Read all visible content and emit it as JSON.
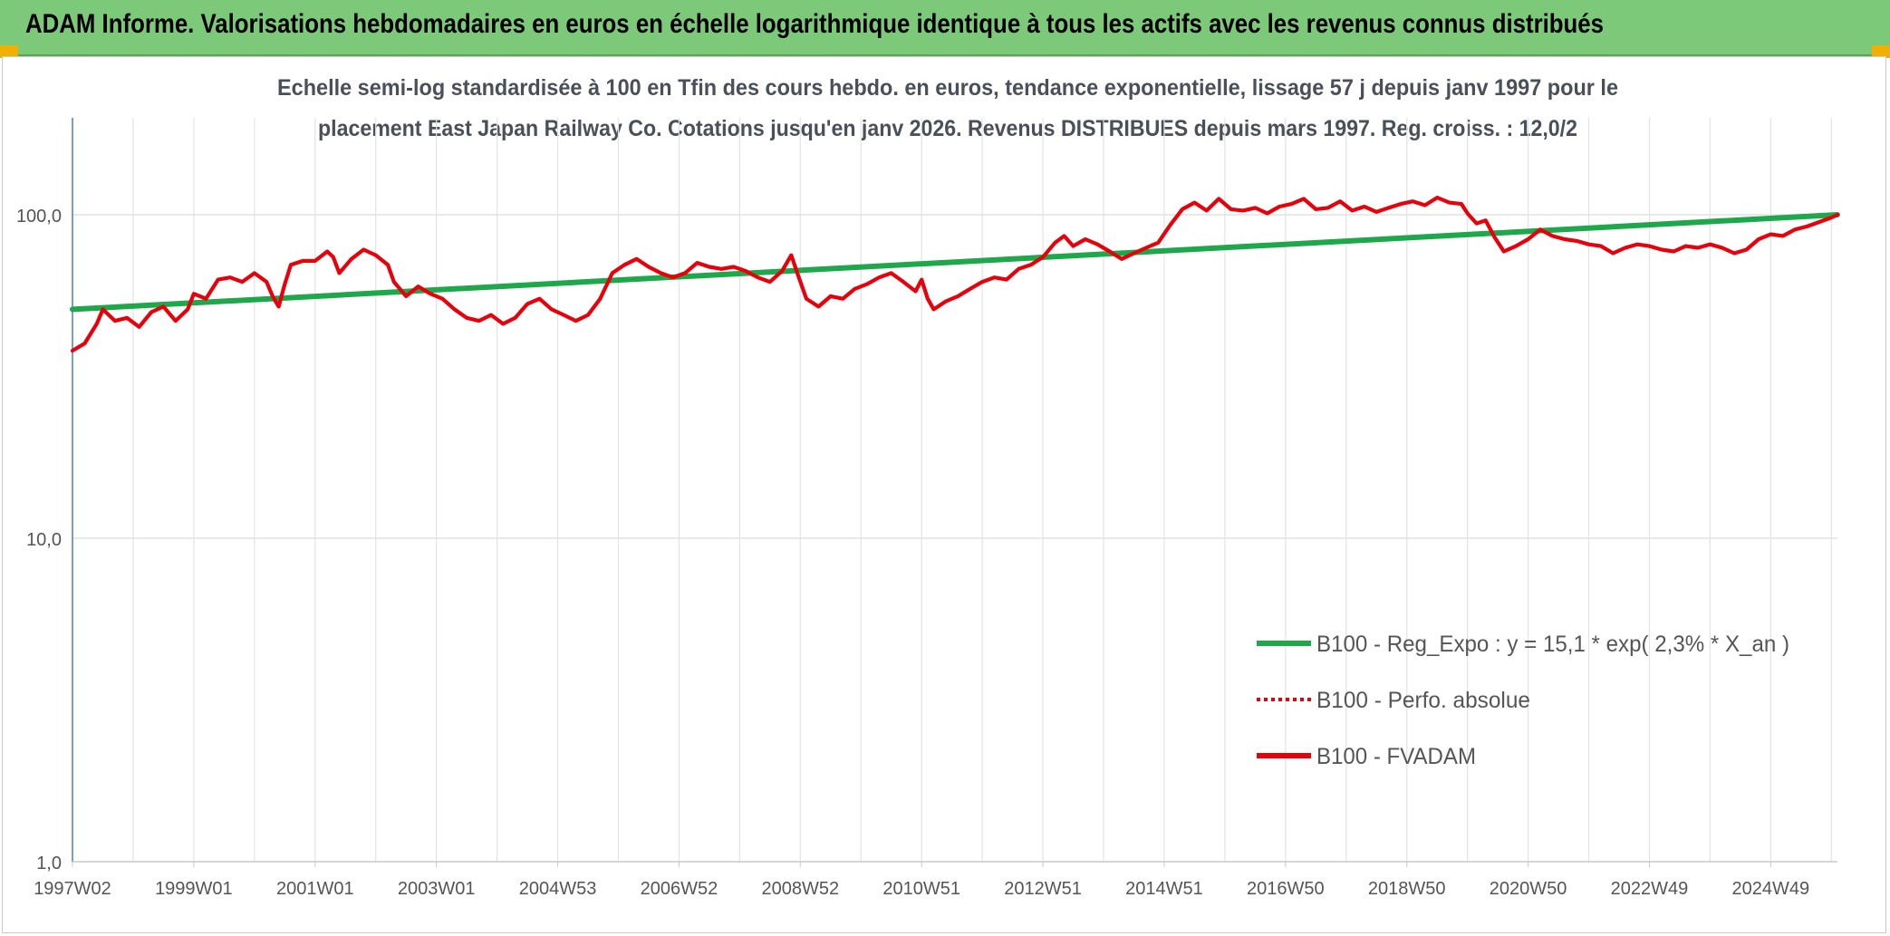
{
  "banner": {
    "title": "ADAM Informe. Valorisations hebdomadaires en euros en échelle logarithmique identique à tous les actifs avec les revenus connus distribués"
  },
  "colors": {
    "banner_bg": "#7dc97a",
    "corner_accent": "#f0b000",
    "regression_line": "#1ea84b",
    "fvadam_line": "#e8000b",
    "axis_line": "#4a7ebb",
    "grid": "#dcdcdc",
    "title_text": "#4a4f5a"
  },
  "chart_data": {
    "type": "line",
    "title_lines": [
      "Echelle semi-log standardisée à 100 en Tfin des cours hebdo. en euros, tendance exponentielle, lissage 57 j depuis janv 1997 pour le",
      "placement East Japan Railway Co. Cotations jusqu'en janv 2026. Revenus DISTRIBUES depuis mars 1997. Reg. croiss. : 12,0/2"
    ],
    "y_scale": "log",
    "ylim": [
      1,
      200
    ],
    "y_ticks": [
      {
        "value": 1,
        "label": "1,0"
      },
      {
        "value": 10,
        "label": "10,0"
      },
      {
        "value": 100,
        "label": "100,0"
      }
    ],
    "xlim": [
      1997.0,
      2026.1
    ],
    "x_ticks": [
      {
        "label": "1997W02",
        "year": 1997.0
      },
      {
        "label": "1999W01",
        "year": 1999.0
      },
      {
        "label": "2001W01",
        "year": 2001.0
      },
      {
        "label": "2003W01",
        "year": 2003.0
      },
      {
        "label": "2004W53",
        "year": 2005.0
      },
      {
        "label": "2006W52",
        "year": 2007.0
      },
      {
        "label": "2008W52",
        "year": 2009.0
      },
      {
        "label": "2010W51",
        "year": 2011.0
      },
      {
        "label": "2012W51",
        "year": 2013.0
      },
      {
        "label": "2014W51",
        "year": 2015.0
      },
      {
        "label": "2016W50",
        "year": 2017.0
      },
      {
        "label": "2018W50",
        "year": 2019.0
      },
      {
        "label": "2020W50",
        "year": 2021.0
      },
      {
        "label": "2022W49",
        "year": 2023.0
      },
      {
        "label": "2024W49",
        "year": 2025.0
      }
    ],
    "legend_position": "right-middle",
    "series": [
      {
        "name": "B100 - Reg_Expo : y = 15,1 * exp( 2,3% *  X_an )",
        "style": "solid-thick",
        "color": "#1ea84b",
        "points": [
          [
            1997.0,
            51
          ],
          [
            2026.1,
            100
          ]
        ]
      },
      {
        "name": "B100 - Perfo. absolue",
        "style": "dotted",
        "color": "#e8000b",
        "points": []
      },
      {
        "name": "B100 - FVADAM",
        "style": "solid",
        "color": "#e8000b",
        "points": [
          [
            1997.0,
            38
          ],
          [
            1997.2,
            40
          ],
          [
            1997.4,
            46
          ],
          [
            1997.5,
            51
          ],
          [
            1997.7,
            47
          ],
          [
            1997.9,
            48
          ],
          [
            1998.1,
            45
          ],
          [
            1998.3,
            50
          ],
          [
            1998.5,
            52
          ],
          [
            1998.7,
            47
          ],
          [
            1998.9,
            51
          ],
          [
            1999.0,
            57
          ],
          [
            1999.2,
            55
          ],
          [
            1999.4,
            63
          ],
          [
            1999.6,
            64
          ],
          [
            1999.8,
            62
          ],
          [
            2000.0,
            66
          ],
          [
            2000.2,
            62
          ],
          [
            2000.3,
            56
          ],
          [
            2000.4,
            52
          ],
          [
            2000.5,
            61
          ],
          [
            2000.6,
            70
          ],
          [
            2000.8,
            72
          ],
          [
            2001.0,
            72
          ],
          [
            2001.2,
            77
          ],
          [
            2001.3,
            74
          ],
          [
            2001.4,
            66
          ],
          [
            2001.6,
            73
          ],
          [
            2001.8,
            78
          ],
          [
            2002.0,
            75
          ],
          [
            2002.2,
            70
          ],
          [
            2002.3,
            62
          ],
          [
            2002.5,
            56
          ],
          [
            2002.7,
            60
          ],
          [
            2002.9,
            57
          ],
          [
            2003.1,
            55
          ],
          [
            2003.3,
            51
          ],
          [
            2003.5,
            48
          ],
          [
            2003.7,
            47
          ],
          [
            2003.9,
            49
          ],
          [
            2004.1,
            46
          ],
          [
            2004.3,
            48
          ],
          [
            2004.5,
            53
          ],
          [
            2004.7,
            55
          ],
          [
            2004.9,
            51
          ],
          [
            2005.1,
            49
          ],
          [
            2005.3,
            47
          ],
          [
            2005.5,
            49
          ],
          [
            2005.7,
            55
          ],
          [
            2005.9,
            66
          ],
          [
            2006.1,
            70
          ],
          [
            2006.3,
            73
          ],
          [
            2006.5,
            69
          ],
          [
            2006.7,
            66
          ],
          [
            2006.9,
            64
          ],
          [
            2007.1,
            66
          ],
          [
            2007.3,
            71
          ],
          [
            2007.5,
            69
          ],
          [
            2007.7,
            68
          ],
          [
            2007.9,
            69
          ],
          [
            2008.1,
            67
          ],
          [
            2008.3,
            64
          ],
          [
            2008.5,
            62
          ],
          [
            2008.7,
            67
          ],
          [
            2008.85,
            75
          ],
          [
            2008.95,
            66
          ],
          [
            2009.1,
            55
          ],
          [
            2009.3,
            52
          ],
          [
            2009.5,
            56
          ],
          [
            2009.7,
            55
          ],
          [
            2009.9,
            59
          ],
          [
            2010.1,
            61
          ],
          [
            2010.3,
            64
          ],
          [
            2010.5,
            66
          ],
          [
            2010.7,
            62
          ],
          [
            2010.9,
            58
          ],
          [
            2011.0,
            63
          ],
          [
            2011.1,
            55
          ],
          [
            2011.2,
            51
          ],
          [
            2011.4,
            54
          ],
          [
            2011.6,
            56
          ],
          [
            2011.8,
            59
          ],
          [
            2012.0,
            62
          ],
          [
            2012.2,
            64
          ],
          [
            2012.4,
            63
          ],
          [
            2012.6,
            68
          ],
          [
            2012.8,
            70
          ],
          [
            2013.0,
            74
          ],
          [
            2013.2,
            82
          ],
          [
            2013.35,
            86
          ],
          [
            2013.5,
            80
          ],
          [
            2013.7,
            84
          ],
          [
            2013.9,
            81
          ],
          [
            2014.1,
            77
          ],
          [
            2014.3,
            73
          ],
          [
            2014.5,
            76
          ],
          [
            2014.7,
            79
          ],
          [
            2014.9,
            82
          ],
          [
            2015.1,
            93
          ],
          [
            2015.3,
            104
          ],
          [
            2015.5,
            109
          ],
          [
            2015.7,
            103
          ],
          [
            2015.9,
            112
          ],
          [
            2016.1,
            104
          ],
          [
            2016.3,
            103
          ],
          [
            2016.5,
            105
          ],
          [
            2016.7,
            101
          ],
          [
            2016.9,
            106
          ],
          [
            2017.1,
            108
          ],
          [
            2017.3,
            112
          ],
          [
            2017.5,
            104
          ],
          [
            2017.7,
            105
          ],
          [
            2017.9,
            110
          ],
          [
            2018.1,
            103
          ],
          [
            2018.3,
            106
          ],
          [
            2018.5,
            102
          ],
          [
            2018.7,
            105
          ],
          [
            2018.9,
            108
          ],
          [
            2019.1,
            110
          ],
          [
            2019.3,
            107
          ],
          [
            2019.5,
            113
          ],
          [
            2019.7,
            109
          ],
          [
            2019.9,
            108
          ],
          [
            2020.0,
            101
          ],
          [
            2020.15,
            94
          ],
          [
            2020.3,
            96
          ],
          [
            2020.45,
            85
          ],
          [
            2020.6,
            77
          ],
          [
            2020.8,
            80
          ],
          [
            2021.0,
            84
          ],
          [
            2021.2,
            90
          ],
          [
            2021.4,
            86
          ],
          [
            2021.6,
            84
          ],
          [
            2021.8,
            83
          ],
          [
            2022.0,
            81
          ],
          [
            2022.2,
            80
          ],
          [
            2022.4,
            76
          ],
          [
            2022.6,
            79
          ],
          [
            2022.8,
            81
          ],
          [
            2023.0,
            80
          ],
          [
            2023.2,
            78
          ],
          [
            2023.4,
            77
          ],
          [
            2023.6,
            80
          ],
          [
            2023.8,
            79
          ],
          [
            2024.0,
            81
          ],
          [
            2024.2,
            79
          ],
          [
            2024.4,
            76
          ],
          [
            2024.6,
            78
          ],
          [
            2024.8,
            84
          ],
          [
            2025.0,
            87
          ],
          [
            2025.2,
            86
          ],
          [
            2025.4,
            90
          ],
          [
            2025.6,
            92
          ],
          [
            2025.8,
            95
          ],
          [
            2026.0,
            98
          ],
          [
            2026.1,
            100
          ]
        ]
      }
    ]
  }
}
